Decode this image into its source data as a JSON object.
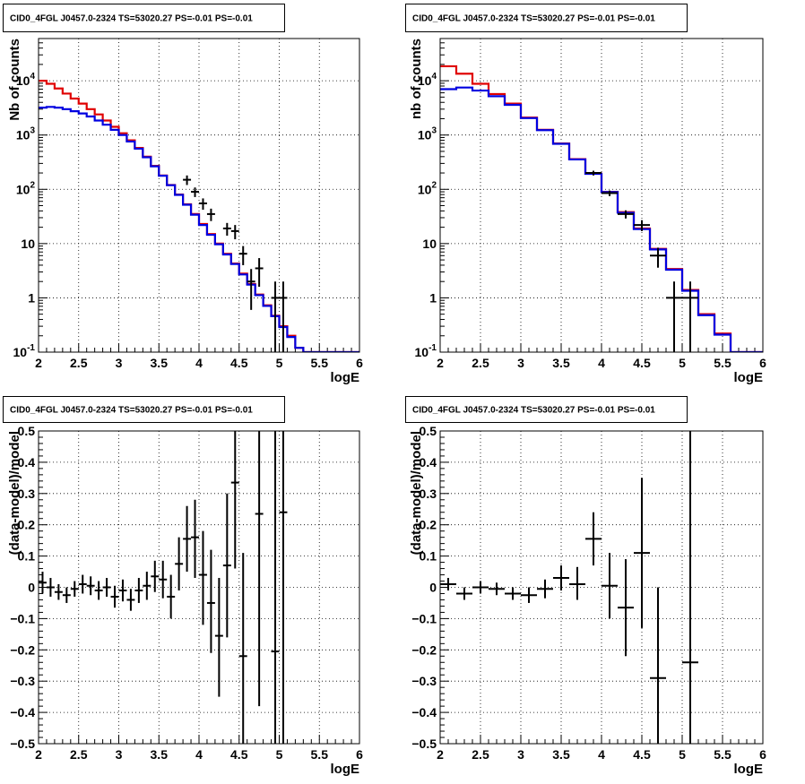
{
  "chart_data": [
    {
      "type": "line",
      "title": "CID0_4FGL J0457.0-2324 TS=53020.27 PS=-0.01 PS=-0.01",
      "xlabel": "logE",
      "ylabel": "Nb of counts",
      "xlim": [
        2,
        6
      ],
      "ylim": [
        0.1,
        60000
      ],
      "yscale": "log",
      "grid": true,
      "xticks": [
        "2",
        "2.5",
        "3",
        "3.5",
        "4",
        "4.5",
        "5",
        "5.5",
        "6"
      ],
      "yticks": [
        {
          "value": 0.1,
          "label": "10",
          "sup": "-1"
        },
        {
          "value": 1,
          "label": "1",
          "sup": ""
        },
        {
          "value": 10,
          "label": "10",
          "sup": ""
        },
        {
          "value": 100,
          "label": "10",
          "sup": "2"
        },
        {
          "value": 1000,
          "label": "10",
          "sup": "3"
        },
        {
          "value": 10000,
          "label": "10",
          "sup": "4"
        }
      ],
      "bin_edges": [
        2.0,
        2.1,
        2.2,
        2.3,
        2.4,
        2.5,
        2.6,
        2.7,
        2.8,
        2.9,
        3.0,
        3.1,
        3.2,
        3.3,
        3.4,
        3.5,
        3.6,
        3.7,
        3.8,
        3.9,
        4.0,
        4.1,
        4.2,
        4.3,
        4.4,
        4.5,
        4.6,
        4.7,
        4.8,
        4.9,
        5.0,
        5.1,
        5.2,
        5.3,
        5.4,
        5.5,
        5.6,
        5.7,
        5.8,
        5.9,
        6.0
      ],
      "series": [
        {
          "color": "#e00000",
          "kind": "step",
          "values": [
            10000,
            8800,
            7200,
            5800,
            4700,
            3800,
            3000,
            2400,
            1850,
            1420,
            1080,
            800,
            580,
            400,
            270,
            180,
            120,
            80,
            53,
            35,
            23,
            15,
            10,
            6.5,
            4.3,
            2.8,
            1.8,
            1.15,
            0.73,
            0.47,
            0.3,
            0.2,
            0.12,
            0.1,
            0.1,
            0.1,
            0.1,
            0.1,
            0.1,
            0.1
          ]
        },
        {
          "color": "#0000e0",
          "kind": "step",
          "values": [
            3200,
            3300,
            3200,
            3000,
            2750,
            2500,
            2200,
            1850,
            1550,
            1250,
            1000,
            760,
            560,
            390,
            265,
            178,
            119,
            79,
            52,
            34,
            22,
            14.5,
            9.7,
            6.3,
            4.2,
            2.7,
            1.75,
            1.12,
            0.71,
            0.46,
            0.29,
            0.19,
            0.12,
            0.1,
            0.1,
            0.1,
            0.1,
            0.1,
            0.1,
            0.1
          ]
        }
      ],
      "points": [
        {
          "x": 3.85,
          "y": 150,
          "xerr": 0.05,
          "ylo": 120,
          "yhi": 180
        },
        {
          "x": 3.95,
          "y": 90,
          "xerr": 0.05,
          "ylo": 72,
          "yhi": 108
        },
        {
          "x": 4.05,
          "y": 55,
          "xerr": 0.05,
          "ylo": 42,
          "yhi": 68
        },
        {
          "x": 4.15,
          "y": 35,
          "xerr": 0.05,
          "ylo": 26,
          "yhi": 44
        },
        {
          "x": 4.35,
          "y": 19,
          "xerr": 0.05,
          "ylo": 14,
          "yhi": 24
        },
        {
          "x": 4.45,
          "y": 17,
          "xerr": 0.05,
          "ylo": 12,
          "yhi": 22
        },
        {
          "x": 4.55,
          "y": 6.5,
          "xerr": 0.05,
          "ylo": 4,
          "yhi": 9
        },
        {
          "x": 4.65,
          "y": 2,
          "xerr": 0.05,
          "ylo": 0.6,
          "yhi": 3.4
        },
        {
          "x": 4.75,
          "y": 3.5,
          "xerr": 0.05,
          "ylo": 1.6,
          "yhi": 5.4
        },
        {
          "x": 4.95,
          "y": 1,
          "xerr": 0.05,
          "ylo": 0.1,
          "yhi": 2
        },
        {
          "x": 5.05,
          "y": 1,
          "xerr": 0.05,
          "ylo": 0.1,
          "yhi": 2
        }
      ]
    },
    {
      "type": "line",
      "title": "CID0_4FGL J0457.0-2324 TS=53020.27 PS=-0.01 PS=-0.01",
      "xlabel": "logE",
      "ylabel": "nb of counts",
      "xlim": [
        2,
        6
      ],
      "ylim": [
        0.1,
        60000
      ],
      "yscale": "log",
      "grid": true,
      "xticks": [
        "2",
        "2.5",
        "3",
        "3.5",
        "4",
        "4.5",
        "5",
        "5.5",
        "6"
      ],
      "yticks": [
        {
          "value": 0.1,
          "label": "10",
          "sup": "-1"
        },
        {
          "value": 1,
          "label": "1",
          "sup": ""
        },
        {
          "value": 10,
          "label": "10",
          "sup": ""
        },
        {
          "value": 100,
          "label": "10",
          "sup": "2"
        },
        {
          "value": 1000,
          "label": "10",
          "sup": "3"
        },
        {
          "value": 10000,
          "label": "10",
          "sup": "4"
        }
      ],
      "bin_edges": [
        2.0,
        2.2,
        2.4,
        2.6,
        2.8,
        3.0,
        3.2,
        3.4,
        3.6,
        3.8,
        4.0,
        4.2,
        4.4,
        4.6,
        4.8,
        5.0,
        5.2,
        5.4,
        5.6,
        5.8,
        6.0
      ],
      "series": [
        {
          "color": "#e00000",
          "kind": "step",
          "values": [
            18500,
            13500,
            8800,
            5700,
            3800,
            2100,
            1250,
            700,
            360,
            195,
            90,
            38,
            19,
            8,
            3.4,
            1.4,
            0.5,
            0.22,
            0.1,
            0.1
          ]
        },
        {
          "color": "#0000e0",
          "kind": "step",
          "values": [
            7000,
            7500,
            6600,
            5200,
            3600,
            2050,
            1230,
            690,
            355,
            193,
            89,
            37,
            18.5,
            7.8,
            3.3,
            1.35,
            0.48,
            0.21,
            0.1,
            0.1
          ]
        }
      ],
      "points": [
        {
          "x": 3.9,
          "y": 200,
          "xerr": 0.1,
          "ylo": 180,
          "yhi": 220
        },
        {
          "x": 4.1,
          "y": 85,
          "xerr": 0.1,
          "ylo": 75,
          "yhi": 95
        },
        {
          "x": 4.3,
          "y": 35,
          "xerr": 0.1,
          "ylo": 29,
          "yhi": 41
        },
        {
          "x": 4.5,
          "y": 22,
          "xerr": 0.1,
          "ylo": 17,
          "yhi": 27
        },
        {
          "x": 4.7,
          "y": 6,
          "xerr": 0.1,
          "ylo": 3.6,
          "yhi": 8.4
        },
        {
          "x": 4.9,
          "y": 1,
          "xerr": 0.1,
          "ylo": 0.1,
          "yhi": 2
        },
        {
          "x": 5.1,
          "y": 1,
          "xerr": 0.1,
          "ylo": 0.1,
          "yhi": 2
        }
      ]
    },
    {
      "type": "scatter",
      "title": "CID0_4FGL J0457.0-2324 TS=53020.27 PS=-0.01 PS=-0.01",
      "xlabel": "logE",
      "ylabel": "(data-model)/model",
      "xlim": [
        2,
        6
      ],
      "ylim": [
        -0.5,
        0.5
      ],
      "yscale": "linear",
      "grid": true,
      "xticks": [
        "2",
        "2.5",
        "3",
        "3.5",
        "4",
        "4.5",
        "5",
        "5.5",
        "6"
      ],
      "yticks": [
        {
          "value": -0.5,
          "label": "−0.5",
          "sup": ""
        },
        {
          "value": -0.4,
          "label": "−0.4",
          "sup": ""
        },
        {
          "value": -0.3,
          "label": "−0.3",
          "sup": ""
        },
        {
          "value": -0.2,
          "label": "−0.2",
          "sup": ""
        },
        {
          "value": -0.1,
          "label": "−0.1",
          "sup": ""
        },
        {
          "value": 0,
          "label": "0",
          "sup": ""
        },
        {
          "value": 0.1,
          "label": "0.1",
          "sup": ""
        },
        {
          "value": 0.2,
          "label": "0.2",
          "sup": ""
        },
        {
          "value": 0.3,
          "label": "0.3",
          "sup": ""
        },
        {
          "value": 0.4,
          "label": "0.4",
          "sup": ""
        },
        {
          "value": 0.5,
          "label": "0.5",
          "sup": ""
        }
      ],
      "series": [],
      "points": [
        {
          "x": 2.05,
          "y": 0.015,
          "xerr": 0.05,
          "ylo": -0.02,
          "yhi": 0.05
        },
        {
          "x": 2.15,
          "y": 0.0,
          "xerr": 0.05,
          "ylo": -0.03,
          "yhi": 0.03
        },
        {
          "x": 2.25,
          "y": -0.015,
          "xerr": 0.05,
          "ylo": -0.04,
          "yhi": 0.01
        },
        {
          "x": 2.35,
          "y": -0.025,
          "xerr": 0.05,
          "ylo": -0.05,
          "yhi": 0.0
        },
        {
          "x": 2.45,
          "y": -0.005,
          "xerr": 0.05,
          "ylo": -0.03,
          "yhi": 0.02
        },
        {
          "x": 2.55,
          "y": 0.01,
          "xerr": 0.05,
          "ylo": -0.02,
          "yhi": 0.04
        },
        {
          "x": 2.65,
          "y": 0.005,
          "xerr": 0.05,
          "ylo": -0.025,
          "yhi": 0.035
        },
        {
          "x": 2.75,
          "y": -0.01,
          "xerr": 0.05,
          "ylo": -0.04,
          "yhi": 0.02
        },
        {
          "x": 2.85,
          "y": 0.0,
          "xerr": 0.05,
          "ylo": -0.03,
          "yhi": 0.03
        },
        {
          "x": 2.95,
          "y": -0.03,
          "xerr": 0.05,
          "ylo": -0.065,
          "yhi": 0.005
        },
        {
          "x": 3.05,
          "y": -0.01,
          "xerr": 0.05,
          "ylo": -0.045,
          "yhi": 0.025
        },
        {
          "x": 3.15,
          "y": -0.04,
          "xerr": 0.05,
          "ylo": -0.075,
          "yhi": -0.005
        },
        {
          "x": 3.25,
          "y": -0.01,
          "xerr": 0.05,
          "ylo": -0.05,
          "yhi": 0.03
        },
        {
          "x": 3.35,
          "y": 0.005,
          "xerr": 0.05,
          "ylo": -0.04,
          "yhi": 0.05
        },
        {
          "x": 3.45,
          "y": 0.035,
          "xerr": 0.05,
          "ylo": -0.015,
          "yhi": 0.085
        },
        {
          "x": 3.55,
          "y": 0.025,
          "xerr": 0.05,
          "ylo": -0.035,
          "yhi": 0.085
        },
        {
          "x": 3.65,
          "y": -0.03,
          "xerr": 0.05,
          "ylo": -0.1,
          "yhi": 0.04
        },
        {
          "x": 3.75,
          "y": 0.075,
          "xerr": 0.05,
          "ylo": -0.01,
          "yhi": 0.16
        },
        {
          "x": 3.85,
          "y": 0.155,
          "xerr": 0.05,
          "ylo": 0.05,
          "yhi": 0.26
        },
        {
          "x": 3.95,
          "y": 0.16,
          "xerr": 0.05,
          "ylo": 0.03,
          "yhi": 0.28
        },
        {
          "x": 4.05,
          "y": 0.04,
          "xerr": 0.05,
          "ylo": -0.12,
          "yhi": 0.18
        },
        {
          "x": 4.15,
          "y": -0.05,
          "xerr": 0.05,
          "ylo": -0.21,
          "yhi": 0.12
        },
        {
          "x": 4.25,
          "y": -0.155,
          "xerr": 0.05,
          "ylo": -0.35,
          "yhi": 0.03
        },
        {
          "x": 4.35,
          "y": 0.07,
          "xerr": 0.05,
          "ylo": -0.16,
          "yhi": 0.3
        },
        {
          "x": 4.45,
          "y": 0.335,
          "xerr": 0.05,
          "ylo": 0.06,
          "yhi": 0.61
        },
        {
          "x": 4.55,
          "y": -0.22,
          "xerr": 0.05,
          "ylo": -0.55,
          "yhi": 0.11
        },
        {
          "x": 4.75,
          "y": 0.235,
          "xerr": 0.05,
          "ylo": -0.38,
          "yhi": 0.8
        },
        {
          "x": 4.95,
          "y": -0.205,
          "xerr": 0.05,
          "ylo": -0.62,
          "yhi": 0.8
        },
        {
          "x": 5.05,
          "y": 0.24,
          "xerr": 0.05,
          "ylo": -0.62,
          "yhi": 0.8
        }
      ]
    },
    {
      "type": "scatter",
      "title": "CID0_4FGL J0457.0-2324 TS=53020.27 PS=-0.01 PS=-0.01",
      "xlabel": "logE",
      "ylabel": "(data-model)/model",
      "xlim": [
        2,
        6
      ],
      "ylim": [
        -0.5,
        0.5
      ],
      "yscale": "linear",
      "grid": true,
      "xticks": [
        "2",
        "2.5",
        "3",
        "3.5",
        "4",
        "4.5",
        "5",
        "5.5",
        "6"
      ],
      "yticks": [
        {
          "value": -0.5,
          "label": "−0.5",
          "sup": ""
        },
        {
          "value": -0.4,
          "label": "−0.4",
          "sup": ""
        },
        {
          "value": -0.3,
          "label": "−0.3",
          "sup": ""
        },
        {
          "value": -0.2,
          "label": "−0.2",
          "sup": ""
        },
        {
          "value": -0.1,
          "label": "−0.1",
          "sup": ""
        },
        {
          "value": 0,
          "label": "0",
          "sup": ""
        },
        {
          "value": 0.1,
          "label": "0.1",
          "sup": ""
        },
        {
          "value": 0.2,
          "label": "0.2",
          "sup": ""
        },
        {
          "value": 0.3,
          "label": "0.3",
          "sup": ""
        },
        {
          "value": 0.4,
          "label": "0.4",
          "sup": ""
        },
        {
          "value": 0.5,
          "label": "0.5",
          "sup": ""
        }
      ],
      "series": [],
      "points": [
        {
          "x": 2.1,
          "y": 0.01,
          "xerr": 0.1,
          "ylo": -0.01,
          "yhi": 0.03
        },
        {
          "x": 2.3,
          "y": -0.02,
          "xerr": 0.1,
          "ylo": -0.04,
          "yhi": 0.0
        },
        {
          "x": 2.5,
          "y": 0.0,
          "xerr": 0.1,
          "ylo": -0.02,
          "yhi": 0.02
        },
        {
          "x": 2.7,
          "y": -0.005,
          "xerr": 0.1,
          "ylo": -0.025,
          "yhi": 0.015
        },
        {
          "x": 2.9,
          "y": -0.02,
          "xerr": 0.1,
          "ylo": -0.04,
          "yhi": 0.0
        },
        {
          "x": 3.1,
          "y": -0.025,
          "xerr": 0.1,
          "ylo": -0.05,
          "yhi": 0.0
        },
        {
          "x": 3.3,
          "y": -0.005,
          "xerr": 0.1,
          "ylo": -0.035,
          "yhi": 0.025
        },
        {
          "x": 3.5,
          "y": 0.03,
          "xerr": 0.1,
          "ylo": -0.01,
          "yhi": 0.07
        },
        {
          "x": 3.7,
          "y": 0.01,
          "xerr": 0.1,
          "ylo": -0.04,
          "yhi": 0.065
        },
        {
          "x": 3.9,
          "y": 0.155,
          "xerr": 0.1,
          "ylo": 0.07,
          "yhi": 0.24
        },
        {
          "x": 4.1,
          "y": 0.005,
          "xerr": 0.1,
          "ylo": -0.1,
          "yhi": 0.11
        },
        {
          "x": 4.3,
          "y": -0.065,
          "xerr": 0.1,
          "ylo": -0.22,
          "yhi": 0.09
        },
        {
          "x": 4.5,
          "y": 0.11,
          "xerr": 0.1,
          "ylo": -0.13,
          "yhi": 0.35
        },
        {
          "x": 4.7,
          "y": -0.29,
          "xerr": 0.1,
          "ylo": -0.58,
          "yhi": 0.0
        },
        {
          "x": 5.1,
          "y": -0.24,
          "xerr": 0.1,
          "ylo": -0.6,
          "yhi": 0.8
        }
      ]
    }
  ]
}
